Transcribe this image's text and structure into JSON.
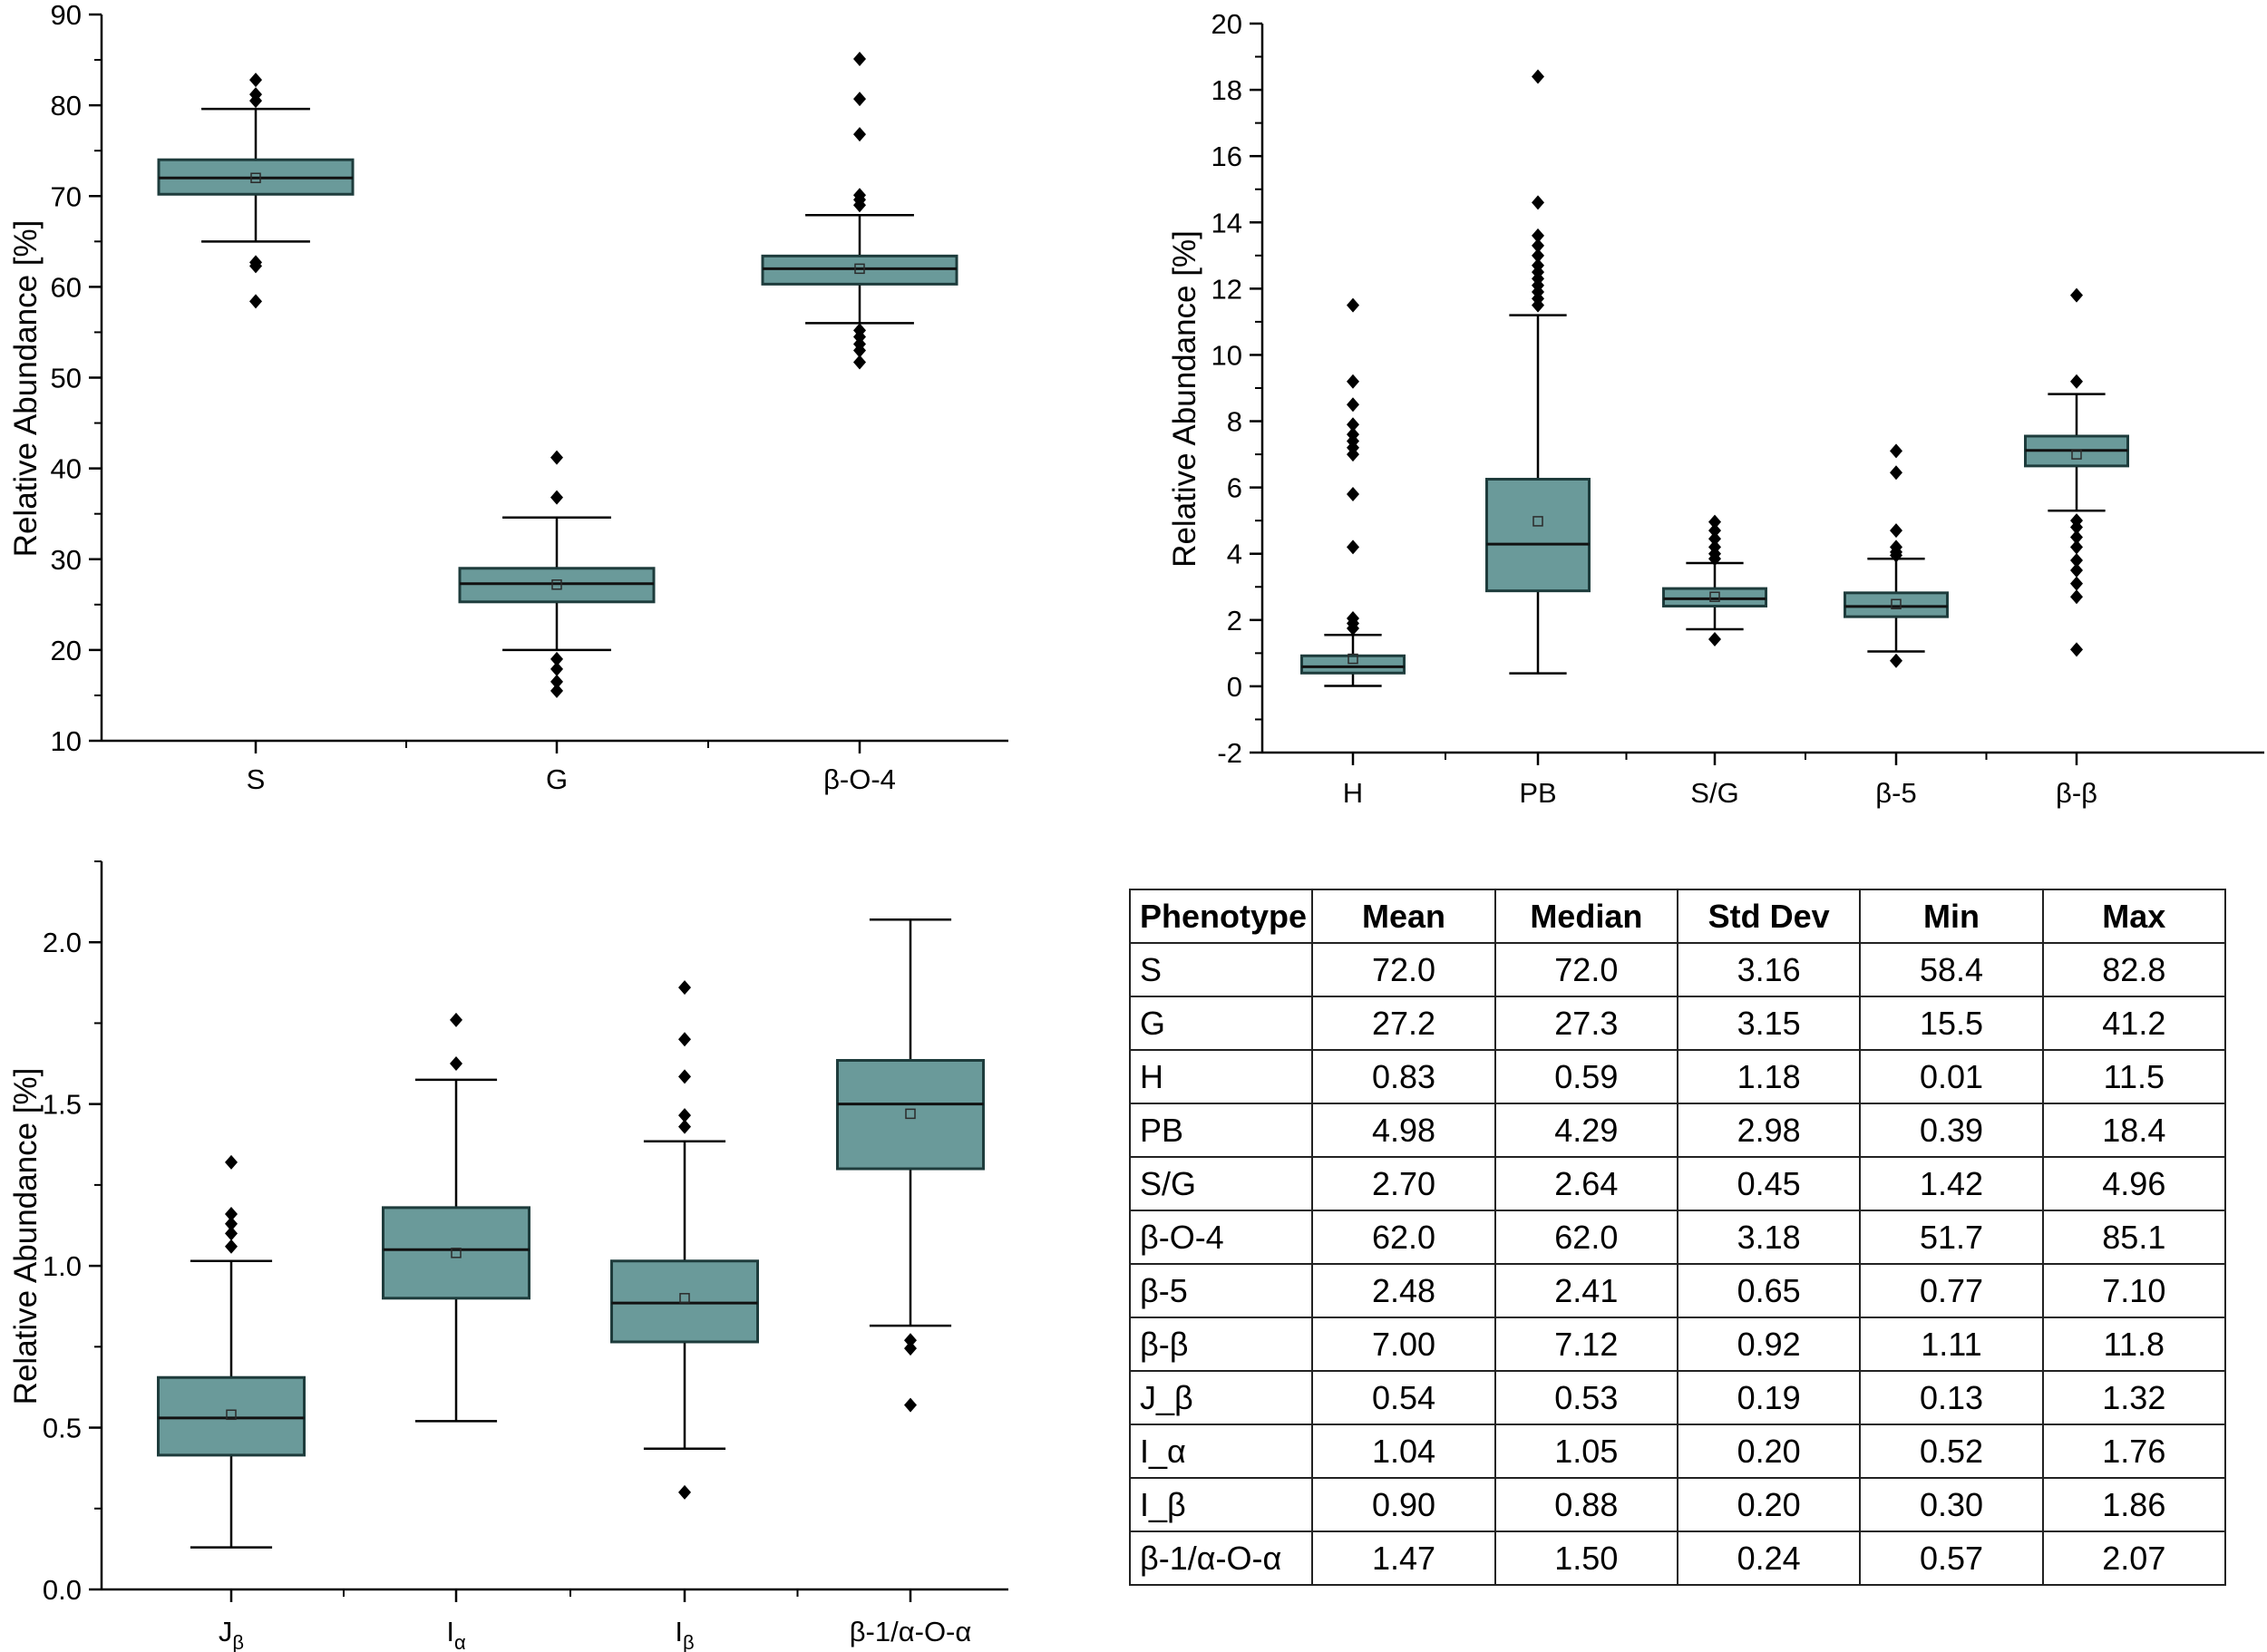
{
  "colors": {
    "box_fill": "#6a9a9a",
    "box_stroke": "#1e3c3c",
    "line": "#000000"
  },
  "chart_data": [
    {
      "type": "box",
      "title": "",
      "ylabel": "Relative Abundance [%]",
      "ylim": [
        10,
        90
      ],
      "yticks": [
        "10",
        "20",
        "30",
        "40",
        "50",
        "60",
        "70",
        "80",
        "90"
      ],
      "categories": [
        "S",
        "G",
        "β-O-4"
      ],
      "boxes": [
        {
          "q1": 70.2,
          "median": 72.0,
          "q3": 74.0,
          "mean": 72.0,
          "whisker_low": 65.0,
          "whisker_high": 79.6,
          "outliers": [
            80.5,
            81.2,
            82.8,
            62.3,
            62.7,
            58.4
          ]
        },
        {
          "q1": 25.3,
          "median": 27.3,
          "q3": 29.0,
          "mean": 27.2,
          "whisker_low": 20.0,
          "whisker_high": 34.6,
          "outliers": [
            36.8,
            41.2,
            19.0,
            17.9,
            16.5,
            15.5
          ]
        },
        {
          "q1": 60.3,
          "median": 62.0,
          "q3": 63.4,
          "mean": 62.0,
          "whisker_low": 56.0,
          "whisker_high": 67.9,
          "outliers": [
            69.0,
            69.6,
            70.1,
            76.8,
            80.7,
            85.1,
            55.2,
            54.5,
            53.7,
            53.0,
            51.7
          ]
        }
      ]
    },
    {
      "type": "box",
      "title": "",
      "ylabel": "Relative Abundance [%]",
      "ylim": [
        -2,
        20
      ],
      "yticks": [
        "-2",
        "0",
        "2",
        "4",
        "6",
        "8",
        "10",
        "12",
        "14",
        "16",
        "18",
        "20"
      ],
      "categories": [
        "H",
        "PB",
        "S/G",
        "β-5",
        "β-β"
      ],
      "boxes": [
        {
          "q1": 0.4,
          "median": 0.59,
          "q3": 0.92,
          "mean": 0.83,
          "whisker_low": 0.01,
          "whisker_high": 1.55,
          "outliers": [
            1.75,
            1.9,
            2.05,
            4.2,
            5.8,
            7.0,
            7.2,
            7.4,
            7.6,
            7.9,
            8.5,
            9.2,
            11.5
          ]
        },
        {
          "q1": 2.88,
          "median": 4.29,
          "q3": 6.25,
          "mean": 4.98,
          "whisker_low": 0.39,
          "whisker_high": 11.2,
          "outliers": [
            11.5,
            11.7,
            11.9,
            12.1,
            12.3,
            12.5,
            12.7,
            13.0,
            13.3,
            13.6,
            14.6,
            18.4
          ]
        },
        {
          "q1": 2.42,
          "median": 2.64,
          "q3": 2.95,
          "mean": 2.7,
          "whisker_low": 1.72,
          "whisker_high": 3.72,
          "outliers": [
            3.85,
            4.0,
            4.2,
            4.45,
            4.7,
            4.96,
            1.42
          ]
        },
        {
          "q1": 2.1,
          "median": 2.41,
          "q3": 2.82,
          "mean": 2.48,
          "whisker_low": 1.05,
          "whisker_high": 3.85,
          "outliers": [
            3.95,
            4.05,
            4.2,
            4.7,
            6.45,
            7.1,
            0.77
          ]
        },
        {
          "q1": 6.65,
          "median": 7.12,
          "q3": 7.55,
          "mean": 7.0,
          "whisker_low": 5.3,
          "whisker_high": 8.82,
          "outliers": [
            9.2,
            11.8,
            5.0,
            4.8,
            4.5,
            4.2,
            3.8,
            3.5,
            3.1,
            2.7,
            1.11
          ]
        }
      ]
    },
    {
      "type": "box",
      "title": "",
      "ylabel": "Relative Abundance [%]",
      "ylim": [
        0.0,
        2.25
      ],
      "yticks": [
        "0.0",
        "0.5",
        "1.0",
        "1.5",
        "2.0"
      ],
      "categories": [
        "J",
        "I",
        "I",
        "β-1/α-O-α"
      ],
      "category_subscripts": [
        "β",
        "α",
        "β",
        ""
      ],
      "boxes": [
        {
          "q1": 0.415,
          "median": 0.53,
          "q3": 0.655,
          "mean": 0.54,
          "whisker_low": 0.13,
          "whisker_high": 1.015,
          "outliers": [
            1.06,
            1.1,
            1.13,
            1.16,
            1.32
          ]
        },
        {
          "q1": 0.9,
          "median": 1.05,
          "q3": 1.18,
          "mean": 1.04,
          "whisker_low": 0.52,
          "whisker_high": 1.575,
          "outliers": [
            1.625,
            1.76
          ]
        },
        {
          "q1": 0.765,
          "median": 0.885,
          "q3": 1.015,
          "mean": 0.9,
          "whisker_low": 0.435,
          "whisker_high": 1.385,
          "outliers": [
            1.43,
            1.465,
            1.585,
            1.7,
            1.86,
            0.3
          ]
        },
        {
          "q1": 1.3,
          "median": 1.5,
          "q3": 1.635,
          "mean": 1.47,
          "whisker_low": 0.815,
          "whisker_high": 2.07,
          "outliers": [
            0.745,
            0.77,
            0.57
          ]
        }
      ]
    }
  ],
  "table": {
    "headers": [
      "Phenotype",
      "Mean",
      "Median",
      "Std Dev",
      "Min",
      "Max"
    ],
    "rows": [
      [
        "S",
        "72.0",
        "72.0",
        "3.16",
        "58.4",
        "82.8"
      ],
      [
        "G",
        "27.2",
        "27.3",
        "3.15",
        "15.5",
        "41.2"
      ],
      [
        "H",
        "0.83",
        "0.59",
        "1.18",
        "0.01",
        "11.5"
      ],
      [
        "PB",
        "4.98",
        "4.29",
        "2.98",
        "0.39",
        "18.4"
      ],
      [
        "S/G",
        "2.70",
        "2.64",
        "0.45",
        "1.42",
        "4.96"
      ],
      [
        "β-O-4",
        "62.0",
        "62.0",
        "3.18",
        "51.7",
        "85.1"
      ],
      [
        "β-5",
        "2.48",
        "2.41",
        "0.65",
        "0.77",
        "7.10"
      ],
      [
        "β-β",
        "7.00",
        "7.12",
        "0.92",
        "1.11",
        "11.8"
      ],
      [
        "J_β",
        "0.54",
        "0.53",
        "0.19",
        "0.13",
        "1.32"
      ],
      [
        "I_α",
        "1.04",
        "1.05",
        "0.20",
        "0.52",
        "1.76"
      ],
      [
        "I_β",
        "0.90",
        "0.88",
        "0.20",
        "0.30",
        "1.86"
      ],
      [
        "β-1/α-O-α",
        "1.47",
        "1.50",
        "0.24",
        "0.57",
        "2.07"
      ]
    ]
  }
}
